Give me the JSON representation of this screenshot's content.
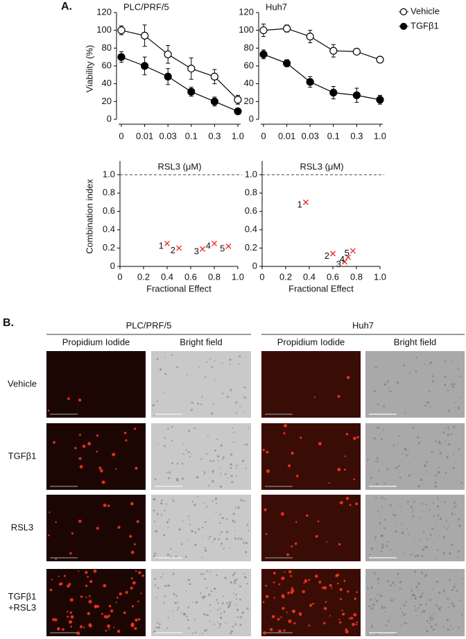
{
  "panel_a": {
    "label": "A."
  },
  "chart_data": [
    {
      "type": "line",
      "title": "PLC/PRF/5",
      "y_label": "Viability (%)",
      "x_label": "RSL3 (μM)",
      "categories": [
        "0",
        "0.01",
        "0.03",
        "0.1",
        "0.3",
        "1.0"
      ],
      "ylim": [
        0,
        120
      ],
      "yticks": [
        0,
        20,
        40,
        60,
        80,
        100,
        120
      ],
      "series": [
        {
          "color": "#000000",
          "marker_fill": "#ffffff",
          "values": [
            100,
            94,
            73,
            57,
            48,
            22
          ],
          "errors": [
            5,
            12,
            10,
            12,
            8,
            5
          ]
        },
        {
          "color": "#000000",
          "marker_fill": "#000000",
          "values": [
            70,
            60,
            48,
            31,
            20,
            9
          ],
          "errors": [
            6,
            10,
            9,
            5,
            5,
            3
          ]
        }
      ]
    },
    {
      "type": "line",
      "title": "Huh7",
      "x_label": "RSL3 (μM)",
      "categories": [
        "0",
        "0.01",
        "0.03",
        "0.1",
        "0.3",
        "1.0"
      ],
      "ylim": [
        0,
        120
      ],
      "yticks": [
        0,
        20,
        40,
        60,
        80,
        100,
        120
      ],
      "series": [
        {
          "name": "Vehicle",
          "color": "#000000",
          "marker_fill": "#ffffff",
          "values": [
            100,
            102,
            93,
            77,
            76,
            67
          ],
          "errors": [
            7,
            4,
            7,
            7,
            3,
            3
          ]
        },
        {
          "name": "TGFβ1",
          "color": "#000000",
          "marker_fill": "#000000",
          "values": [
            73,
            63,
            42,
            30,
            27,
            22
          ],
          "errors": [
            5,
            4,
            6,
            7,
            8,
            5
          ]
        }
      ]
    },
    {
      "type": "scatter",
      "y_label": "Combination index",
      "x_label": "Fractional Effect",
      "color": "#e8251e",
      "hline": 1,
      "x": [
        0.4,
        0.5,
        0.7,
        0.8,
        0.92
      ],
      "values": [
        0.25,
        0.2,
        0.19,
        0.25,
        0.22
      ],
      "point_labels": [
        "1",
        "2",
        "3",
        "4",
        "5"
      ],
      "xlim": [
        0,
        1
      ],
      "xticks": [
        0,
        0.2,
        0.4,
        0.6,
        0.8,
        {
          "value": 1,
          "label": "1.0"
        }
      ],
      "ylim": [
        0,
        1.15
      ],
      "yticks": [
        0,
        0.2,
        0.4,
        0.6,
        0.8,
        {
          "value": 1,
          "label": "1.0"
        }
      ]
    },
    {
      "type": "scatter",
      "x_label": "Fractional Effect",
      "color": "#e8251e",
      "hline": 1,
      "x": [
        0.37,
        0.6,
        0.7,
        0.73,
        0.77
      ],
      "values": [
        0.7,
        0.14,
        0.05,
        0.1,
        0.17
      ],
      "point_labels": [
        "1",
        "2",
        "3",
        "4",
        "5"
      ],
      "xlim": [
        0,
        1
      ],
      "xticks": [
        0,
        0.2,
        0.4,
        0.6,
        0.8,
        {
          "value": 1,
          "label": "1.0"
        }
      ],
      "ylim": [
        0,
        1.15
      ],
      "yticks": [
        0,
        0.2,
        0.4,
        0.6,
        0.8,
        {
          "value": 1,
          "label": "1.0"
        }
      ]
    }
  ],
  "panel_b": {
    "label": "B.",
    "groups": [
      {
        "title": "PLC/PRF/5",
        "columns": [
          "Propidium Iodide",
          "Bright field"
        ]
      },
      {
        "title": "Huh7",
        "columns": [
          "Propidium Iodide",
          "Bright field"
        ]
      }
    ],
    "rows": [
      [
        "Vehicle"
      ],
      [
        "TGFβ1"
      ],
      [
        "RSL3"
      ],
      [
        "TGFβ1",
        "+RSL3"
      ]
    ]
  }
}
